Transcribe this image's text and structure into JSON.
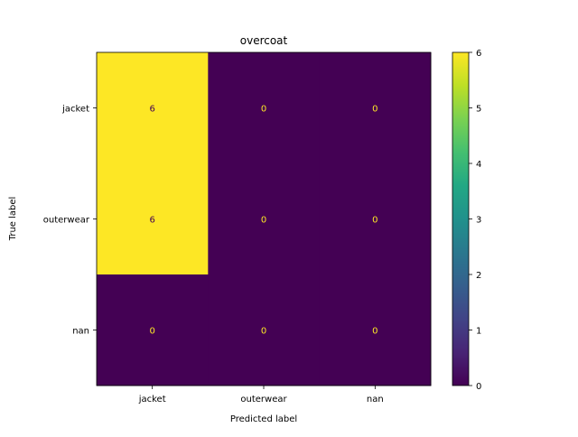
{
  "chart_data": {
    "type": "heatmap",
    "title": "overcoat",
    "xlabel": "Predicted label",
    "ylabel": "True label",
    "x_categories": [
      "jacket",
      "outerwear",
      "nan"
    ],
    "y_categories": [
      "jacket",
      "outerwear",
      "nan"
    ],
    "values": [
      [
        6,
        0,
        0
      ],
      [
        6,
        0,
        0
      ],
      [
        0,
        0,
        0
      ]
    ],
    "colormap": "viridis",
    "color_range": [
      0,
      6
    ],
    "colorbar_ticks": [
      "0",
      "1",
      "2",
      "3",
      "4",
      "5",
      "6"
    ],
    "colors": {
      "low": "#440154",
      "high": "#fde725"
    },
    "grid": false
  }
}
